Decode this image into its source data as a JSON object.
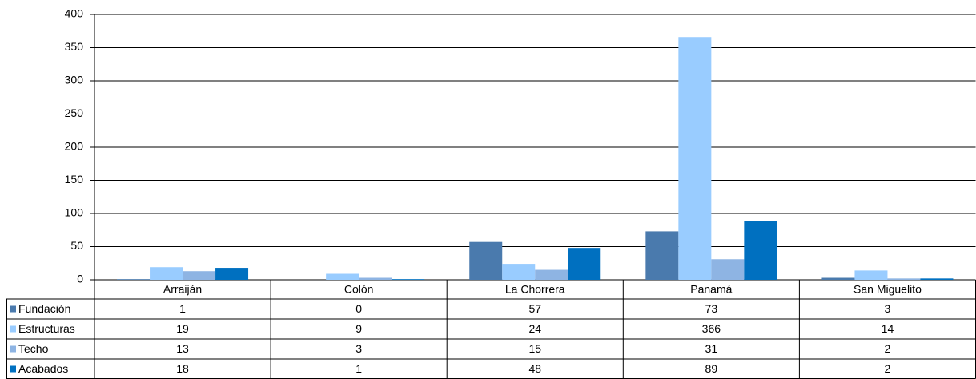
{
  "chart_data": {
    "type": "bar",
    "categories": [
      "Arraiján",
      "Colón",
      "La Chorrera",
      "Panamá",
      "San Miguelito"
    ],
    "series": [
      {
        "name": "Fundación",
        "color": "#4a7aad",
        "values": [
          1,
          0,
          57,
          73,
          3
        ]
      },
      {
        "name": "Estructuras",
        "color": "#99ccff",
        "values": [
          19,
          9,
          24,
          366,
          14
        ]
      },
      {
        "name": "Techo",
        "color": "#8eb4e3",
        "values": [
          13,
          3,
          15,
          31,
          2
        ]
      },
      {
        "name": "Acabados",
        "color": "#0070c0",
        "values": [
          18,
          1,
          48,
          89,
          2
        ]
      }
    ],
    "ylim": [
      0,
      400
    ],
    "yticks": [
      0,
      50,
      100,
      150,
      200,
      250,
      300,
      350,
      400
    ],
    "grid": true
  }
}
